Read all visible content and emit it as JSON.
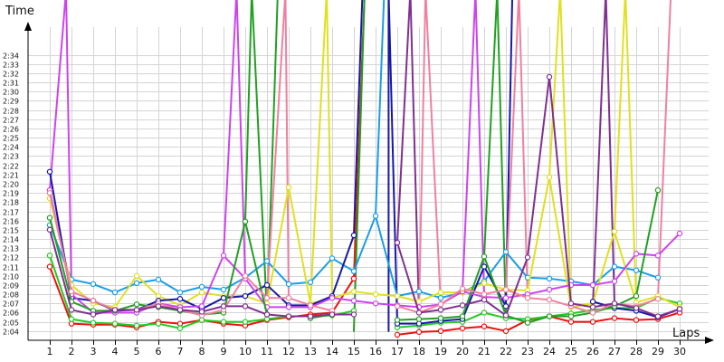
{
  "chart_data": {
    "type": "line",
    "title": "",
    "ylabel": "Time",
    "xlabel": "Laps",
    "x": [
      1,
      2,
      3,
      4,
      5,
      6,
      7,
      8,
      9,
      10,
      11,
      12,
      13,
      14,
      15,
      16,
      17,
      18,
      19,
      20,
      21,
      22,
      23,
      24,
      25,
      26,
      27,
      28,
      29,
      30
    ],
    "xlim": [
      0,
      30
    ],
    "ylim": [
      "2:03",
      "2:37"
    ],
    "y_ticks": [
      "2:04",
      "2:05",
      "2:06",
      "2:07",
      "2:08",
      "2:09",
      "2:10",
      "2:11",
      "2:12",
      "2:13",
      "2:14",
      "2:15",
      "2:16",
      "2:17",
      "2:18",
      "2:19",
      "2:20",
      "2:21",
      "2:22",
      "2:23",
      "2:24",
      "2:25",
      "2:26",
      "2:27",
      "2:28",
      "2:29",
      "2:30",
      "2:31",
      "2:32",
      "2:33",
      "2:34"
    ],
    "grid": true,
    "legend": "none",
    "series": [
      {
        "color": "#ee1111",
        "values": [
          "2:11.0",
          "2:04.8",
          "2:04.7",
          "2:04.7",
          "2:04.4",
          "2:05.0",
          "2:04.8",
          "2:05.2",
          "2:04.8",
          "2:04.6",
          "2:05.2",
          "2:05.5",
          "2:05.8",
          "2:06.0",
          "2:09.7",
          null,
          "2:03.6",
          "2:03.9",
          "2:04.0",
          "2:04.3",
          "2:04.5",
          "2:04.0",
          "2:05.2",
          "2:05.6",
          "2:05.0",
          "2:05.0",
          "2:05.4",
          "2:05.2",
          "2:05.3",
          "2:06.0"
        ]
      },
      {
        "color": "#22cc22",
        "values": [
          "2:12.2",
          "2:05.3",
          "2:04.9",
          "2:04.8",
          "2:04.6",
          "2:04.8",
          "2:04.3",
          "2:05.2",
          "2:05.0",
          "2:05.0",
          "2:05.3",
          "2:05.6",
          "2:05.6",
          "2:05.7",
          "2:06.2",
          null,
          "2:04.4",
          "2:04.6",
          "2:04.9",
          "2:05.0",
          "2:06.0",
          "2:05.4",
          "2:05.3",
          "2:05.6",
          "2:05.9",
          "2:06.3",
          "2:06.5",
          "2:06.5",
          "2:07.6",
          "2:07.0"
        ]
      },
      {
        "color": "#1a9ee8",
        "values": [
          "2:15.5",
          "2:09.6",
          "2:09.1",
          "2:08.2",
          "2:09.2",
          "2:09.6",
          "2:08.2",
          "2:08.8",
          "2:08.5",
          "2:09.8",
          "2:11.6",
          "2:09.1",
          "2:09.3",
          "2:11.9",
          "2:10.5",
          "2:16.5",
          "2:07.8",
          "2:08.3",
          "2:07.6",
          "2:08.2",
          "2:09.4",
          "2:12.6",
          "2:09.8",
          "2:09.7",
          "2:09.4",
          "2:09.0",
          "2:11.0",
          "2:10.6",
          "2:09.8",
          null
        ]
      },
      {
        "color": "#e0e020",
        "values": [
          "2:18.4",
          "2:09.0",
          "2:07.0",
          "2:06.6",
          "2:10.0",
          "2:07.8",
          "2:06.8",
          "2:08.2",
          "2:07.8",
          "2:07.8",
          "2:07.0",
          "2:19.6",
          "2:07.0",
          "2:07.6",
          "2:08.3",
          "2:08.0",
          "2:07.8",
          "2:07.2",
          "2:08.2",
          "2:08.2",
          "2:09.2",
          "2:08.5",
          "2:08.4",
          "2:20.7",
          "2:06.6",
          "2:07.0",
          "2:14.8",
          "2:07.1",
          "2:07.8",
          "2:06.6"
        ]
      },
      {
        "color": "#1818a8",
        "values": [
          "2:21.3",
          "2:07.6",
          "2:07.3",
          "2:06.2",
          "2:06.3",
          "2:07.3",
          "2:07.5",
          "2:06.4",
          "2:07.6",
          "2:07.8",
          "2:09.0",
          "2:06.8",
          "2:06.8",
          "2:07.8",
          "2:14.4",
          null,
          "2:04.8",
          "2:04.8",
          "2:05.1",
          "2:05.3",
          "2:11.0",
          "2:06.7",
          null,
          null,
          null,
          "2:07.2",
          "2:06.5",
          "2:06.2",
          "2:05.5",
          "2:06.4"
        ]
      },
      {
        "color": "#cc44ee",
        "values": [
          "2:19.3",
          "2:08.0",
          "2:06.0",
          "2:06.0",
          "2:06.0",
          "2:07.0",
          "2:06.6",
          "2:06.7",
          "2:12.2",
          "2:09.7",
          "2:06.6",
          "2:06.6",
          "2:06.6",
          "2:07.6",
          "2:07.3",
          "2:07.0",
          "2:06.8",
          "2:06.6",
          "2:06.9",
          "2:08.3",
          "2:07.7",
          "2:07.6",
          "2:08.0",
          "2:08.5",
          "2:09.0",
          "2:09.0",
          "2:09.4",
          "2:12.4",
          "2:12.2",
          "2:14.6"
        ]
      },
      {
        "color": "#22a022",
        "values": [
          "2:16.3",
          "2:07.2",
          "2:06.2",
          "2:06.2",
          "2:06.9",
          "2:06.6",
          "2:06.2",
          "2:05.8",
          "2:06.0",
          "2:15.9",
          "2:05.8",
          null,
          "2:05.4",
          "2:05.8",
          null,
          null,
          "2:05.2",
          "2:05.3",
          "2:05.4",
          "2:05.6",
          "2:12.1",
          "2:05.7",
          "2:04.9",
          "2:05.6",
          "2:05.6",
          "2:06.0",
          "2:06.7",
          "2:07.8",
          "2:19.3",
          null
        ]
      },
      {
        "color": "#f080a0",
        "values": [
          "2:19.0",
          "2:08.3",
          "2:07.3",
          "2:06.3",
          "2:06.3",
          "2:07.0",
          "2:06.3",
          "2:05.7",
          "2:06.3",
          "2:10.0",
          "2:07.6",
          "2:07.6",
          "2:06.8",
          "2:06.2",
          null,
          null,
          "2:06.7",
          "2:06.0",
          "2:06.9",
          "2:08.6",
          "2:08.0",
          "2:08.5",
          "2:07.6",
          "2:07.4",
          "2:06.7",
          "2:06.0",
          "2:07.0",
          "2:06.7",
          "2:07.5",
          null
        ]
      },
      {
        "color": "#803090",
        "values": [
          "2:15.0",
          "2:06.3",
          "2:05.8",
          "2:06.3",
          "2:06.3",
          "2:06.7",
          "2:06.3",
          "2:06.1",
          "2:06.7",
          "2:06.7",
          "2:05.8",
          "2:05.6",
          "2:05.6",
          "2:05.8",
          "2:05.8",
          null,
          "2:13.6",
          "2:06.0",
          "2:06.3",
          "2:06.8",
          "2:07.4",
          "2:05.7",
          "2:12.0",
          "2:31.6",
          "2:07.0",
          "2:06.6",
          "2:07.0",
          "2:06.5",
          "2:05.6",
          "2:06.4"
        ]
      }
    ],
    "spikes": [
      {
        "color": "#cc44ee",
        "from_x": 1,
        "to_x": 2,
        "peak_x": 1.75
      },
      {
        "color": "#cc44ee",
        "from_x": 9,
        "to_x": 10,
        "peak_x": 9.6
      },
      {
        "color": "#22a022",
        "from_x": 10,
        "to_x": 11,
        "peak_x": 10.3
      },
      {
        "color": "#22a022",
        "from_x": 11,
        "to_x": 12,
        "peak_x": 11.5
      },
      {
        "color": "#f080a0",
        "from_x": 11,
        "to_x": 12,
        "peak_x": 11.85
      },
      {
        "color": "#e0e020",
        "from_x": 13,
        "to_x": 14,
        "peak_x": 13.75
      },
      {
        "color": "#1818a8",
        "from_x": 15,
        "to_x": 15.4,
        "peak_x": 15.4
      },
      {
        "color": "#ee1111",
        "from_x": 15,
        "to_x": 15.5,
        "peak_x": 15.5
      },
      {
        "color": "#22a022",
        "from_x": 15,
        "to_x": 15.5,
        "peak_x": 15.5
      },
      {
        "color": "#1a9ee8",
        "from_x": 16,
        "to_x": 16.4,
        "peak_x": 16.4
      },
      {
        "color": "#1818a8",
        "from_x": 16.6,
        "to_x": 17,
        "peak_x": 16.6
      },
      {
        "color": "#803090",
        "from_x": 17,
        "to_x": 18,
        "peak_x": 17.6
      },
      {
        "color": "#f080a0",
        "from_x": 18,
        "to_x": 19,
        "peak_x": 18.3
      },
      {
        "color": "#cc44ee",
        "from_x": 20,
        "to_x": 21,
        "peak_x": 20.6
      },
      {
        "color": "#22a022",
        "from_x": 21,
        "to_x": 22,
        "peak_x": 21.6
      },
      {
        "color": "#1818a8",
        "from_x": 22,
        "to_x": 22.3,
        "peak_x": 22.3
      },
      {
        "color": "#f080a0",
        "from_x": 22,
        "to_x": 23,
        "peak_x": 22.6
      },
      {
        "color": "#e0e020",
        "from_x": 24,
        "to_x": 25,
        "peak_x": 24.5
      },
      {
        "color": "#803090",
        "from_x": 26,
        "to_x": 27,
        "peak_x": 26.6
      },
      {
        "color": "#e0e020",
        "from_x": 27,
        "to_x": 28,
        "peak_x": 27.5
      },
      {
        "color": "#f080a0",
        "from_x": 29,
        "to_x": 29.6,
        "peak_x": 29.6
      }
    ]
  }
}
